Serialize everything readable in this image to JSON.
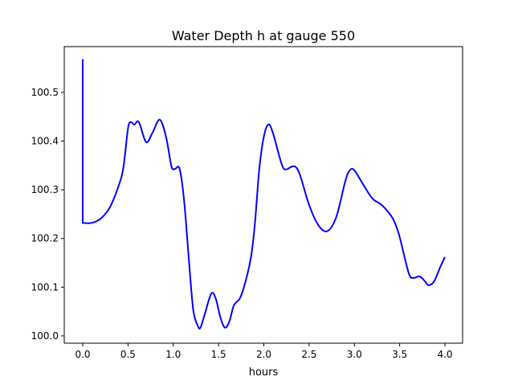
{
  "chart_data": {
    "type": "line",
    "title": "Water Depth h at gauge 550",
    "xlabel": "hours",
    "ylabel": "",
    "xlim": [
      -0.204,
      4.195
    ],
    "ylim": [
      99.985,
      100.594
    ],
    "xticks": [
      0.0,
      0.5,
      1.0,
      1.5,
      2.0,
      2.5,
      3.0,
      3.5,
      4.0
    ],
    "xtick_labels": [
      "0.0",
      "0.5",
      "1.0",
      "1.5",
      "2.0",
      "2.5",
      "3.0",
      "3.5",
      "4.0"
    ],
    "yticks": [
      100.0,
      100.1,
      100.2,
      100.3,
      100.4,
      100.5
    ],
    "ytick_labels": [
      "100.0",
      "100.1",
      "100.2",
      "100.3",
      "100.4",
      "100.5"
    ],
    "grid": false,
    "series": [
      {
        "name": "h",
        "color": "#0000ff",
        "x": [
          0.0,
          0.0,
          0.1,
          0.2,
          0.3,
          0.4,
          0.45,
          0.5,
          0.53,
          0.57,
          0.62,
          0.7,
          0.77,
          0.85,
          0.92,
          0.98,
          1.02,
          1.07,
          1.12,
          1.17,
          1.22,
          1.27,
          1.3,
          1.35,
          1.42,
          1.47,
          1.52,
          1.57,
          1.62,
          1.67,
          1.75,
          1.85,
          1.9,
          1.95,
          2.0,
          2.05,
          2.1,
          2.2,
          2.25,
          2.3,
          2.35,
          2.4,
          2.5,
          2.6,
          2.7,
          2.8,
          2.9,
          2.95,
          3.0,
          3.1,
          3.2,
          3.3,
          3.4,
          3.45,
          3.5,
          3.6,
          3.65,
          3.72,
          3.78,
          3.82,
          3.88,
          3.95,
          4.0
        ],
        "y": [
          100.568,
          100.232,
          100.232,
          100.241,
          100.264,
          100.31,
          100.347,
          100.426,
          100.439,
          100.434,
          100.439,
          100.398,
          100.417,
          100.444,
          100.409,
          100.348,
          100.343,
          100.343,
          100.277,
          100.162,
          100.054,
          100.021,
          100.017,
          100.046,
          100.087,
          100.076,
          100.038,
          100.017,
          100.03,
          100.063,
          100.083,
          100.153,
          100.228,
          100.343,
          100.409,
          100.434,
          100.417,
          100.351,
          100.342,
          100.347,
          100.347,
          100.33,
          100.269,
          100.228,
          100.215,
          100.244,
          100.318,
          100.34,
          100.34,
          100.31,
          100.282,
          100.269,
          100.248,
          100.231,
          100.203,
          100.129,
          100.119,
          100.122,
          100.112,
          100.104,
          100.112,
          100.142,
          100.162
        ]
      }
    ]
  }
}
